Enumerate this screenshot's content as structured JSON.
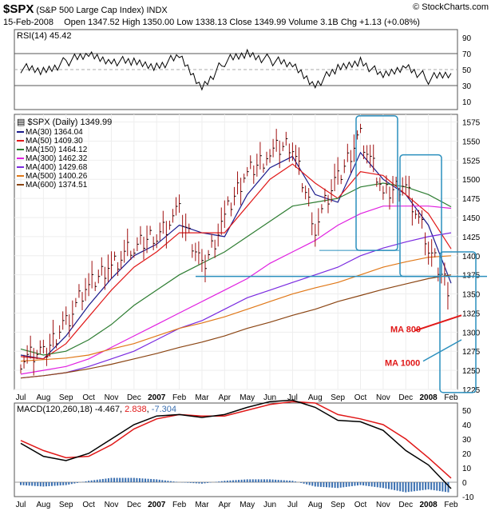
{
  "header": {
    "symbol": "$SPX",
    "name": "(S&P 500 Large Cap Index)",
    "exchange": "INDX",
    "date": "15-Feb-2008",
    "quote": "Open 1347.52  High 1350.00  Low 1338.13  Close 1349.99  Volume 3.1B  Chg +1.13 (+0.08%)",
    "brand": "© StockCharts.com"
  },
  "rsi_panel": {
    "label": "RSI(14) 45.42",
    "ticks": [
      90,
      70,
      50,
      30,
      10
    ]
  },
  "price_panel": {
    "title_label": "$SPX (Daily) 1349.99",
    "legend": [
      {
        "text": "MA(30) 1364.04",
        "color": "#1a1a8c"
      },
      {
        "text": "MA(50) 1409.30",
        "color": "#e01818"
      },
      {
        "text": "MA(150) 1464.12",
        "color": "#2e7d32"
      },
      {
        "text": "MA(300) 1462.32",
        "color": "#e020e0"
      },
      {
        "text": "MA(400) 1429.68",
        "color": "#7a2ae0"
      },
      {
        "text": "MA(500) 1400.26",
        "color": "#e07818"
      },
      {
        "text": "MA(600) 1374.51",
        "color": "#8b4513"
      }
    ],
    "annotations": [
      "MA 800",
      "MA 1000"
    ],
    "ticks": [
      1575,
      1550,
      1525,
      1500,
      1475,
      1450,
      1425,
      1400,
      1375,
      1350,
      1325,
      1300,
      1275,
      1250,
      1225
    ]
  },
  "macd_panel": {
    "label_prefix": "MACD(120,260,18)",
    "values": [
      "-4.467",
      "2.838",
      "-7.304"
    ],
    "ticks": [
      50,
      40,
      30,
      20,
      10,
      0,
      -10
    ]
  },
  "x_axis": {
    "labels": [
      "Jul",
      "Aug",
      "Sep",
      "Oct",
      "Nov",
      "Dec",
      "2007",
      "Feb",
      "Mar",
      "Apr",
      "May",
      "Jun",
      "Jul",
      "Aug",
      "Sep",
      "Oct",
      "Nov",
      "Dec",
      "2008",
      "Feb"
    ],
    "bold": [
      "2007",
      "2008"
    ]
  },
  "chart_data": {
    "type": "line",
    "series": [
      {
        "name": "$SPX (Daily)",
        "x": [
          "Jul",
          "Aug",
          "Sep",
          "Oct",
          "Nov",
          "Dec",
          "2007",
          "Feb",
          "Mar",
          "Apr",
          "May",
          "Jun",
          "Jul",
          "Aug",
          "Sep",
          "Oct",
          "Nov",
          "Dec",
          "2008",
          "Feb"
        ],
        "values": [
          1265,
          1270,
          1315,
          1360,
          1390,
          1410,
          1430,
          1455,
          1385,
          1450,
          1510,
          1535,
          1545,
          1440,
          1500,
          1560,
          1480,
          1495,
          1410,
          1350
        ]
      },
      {
        "name": "MA(30)",
        "values": [
          1270,
          1265,
          1295,
          1335,
          1370,
          1400,
          1415,
          1440,
          1430,
          1425,
          1480,
          1515,
          1530,
          1480,
          1470,
          1535,
          1500,
          1480,
          1440,
          1364
        ]
      },
      {
        "name": "MA(50)",
        "values": [
          1268,
          1265,
          1285,
          1320,
          1355,
          1385,
          1405,
          1430,
          1430,
          1430,
          1465,
          1500,
          1520,
          1495,
          1475,
          1510,
          1505,
          1480,
          1455,
          1409
        ]
      },
      {
        "name": "MA(150)",
        "values": [
          1278,
          1270,
          1275,
          1290,
          1310,
          1335,
          1355,
          1375,
          1390,
          1405,
          1425,
          1445,
          1465,
          1470,
          1475,
          1490,
          1495,
          1490,
          1480,
          1464
        ]
      },
      {
        "name": "MA(300)",
        "values": [
          1245,
          1250,
          1255,
          1265,
          1280,
          1295,
          1310,
          1325,
          1340,
          1355,
          1370,
          1390,
          1405,
          1420,
          1440,
          1455,
          1465,
          1465,
          1465,
          1462
        ]
      },
      {
        "name": "MA(400)",
        "values": [
          1240,
          1243,
          1247,
          1255,
          1265,
          1275,
          1290,
          1305,
          1315,
          1330,
          1345,
          1355,
          1365,
          1375,
          1385,
          1400,
          1410,
          1418,
          1425,
          1430
        ]
      },
      {
        "name": "MA(500)",
        "values": [
          1262,
          1264,
          1266,
          1270,
          1278,
          1285,
          1295,
          1305,
          1312,
          1320,
          1330,
          1340,
          1350,
          1358,
          1365,
          1375,
          1385,
          1392,
          1398,
          1400
        ]
      },
      {
        "name": "MA(600)",
        "values": [
          1240,
          1243,
          1247,
          1252,
          1258,
          1265,
          1272,
          1280,
          1287,
          1295,
          1305,
          1313,
          1322,
          1330,
          1340,
          1348,
          1356,
          1363,
          1370,
          1375
        ]
      }
    ],
    "rsi": {
      "values": [
        52,
        48,
        60,
        68,
        62,
        58,
        55,
        65,
        28,
        60,
        70,
        62,
        55,
        32,
        50,
        62,
        40,
        55,
        38,
        45.42
      ],
      "ylim": [
        0,
        100
      ]
    },
    "macd": {
      "macd_values": [
        27,
        18,
        15,
        20,
        30,
        40,
        46,
        47,
        45,
        47,
        52,
        56,
        57,
        52,
        43,
        42,
        36,
        22,
        12,
        -4.467
      ],
      "signal_values": [
        29,
        22,
        17,
        18,
        26,
        37,
        44,
        47,
        46,
        46,
        50,
        54,
        56,
        55,
        47,
        44,
        40,
        30,
        17,
        2.838
      ],
      "hist_values": [
        -2,
        -3,
        -2,
        1,
        3,
        3,
        2,
        0,
        -1,
        1,
        2,
        2,
        1,
        -3,
        -4,
        -2,
        -4,
        -7,
        -5,
        -7.304
      ],
      "ylim": [
        -10,
        55
      ]
    },
    "ylim": [
      1225,
      1585
    ],
    "xlabel": "",
    "ylabel": ""
  }
}
